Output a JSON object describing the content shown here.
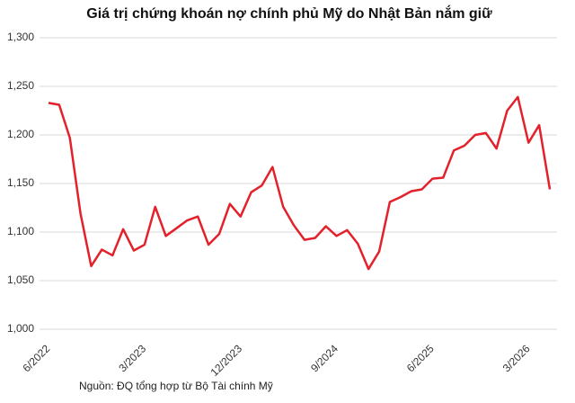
{
  "chart_data": {
    "type": "line",
    "title": "Giá trị chứng khoán nợ chính phủ Mỹ do Nhật Bản nắm giữ",
    "source": "Nguồn: ĐQ tổng hợp từ Bộ Tài chính Mỹ",
    "categories": [
      "6/2022",
      null,
      null,
      null,
      null,
      null,
      null,
      null,
      null,
      "3/2023",
      null,
      null,
      null,
      null,
      null,
      null,
      null,
      null,
      "12/2023",
      null,
      null,
      null,
      null,
      null,
      null,
      null,
      null,
      "9/2024",
      null,
      null,
      null,
      null,
      null,
      null,
      null,
      null,
      "6/2025",
      null,
      null,
      null,
      null,
      null,
      null,
      null,
      null,
      "3/2026",
      null,
      null
    ],
    "series": [
      {
        "name": "Giá trị",
        "color": "#e3212b",
        "values": [
          1233,
          1231,
          1197,
          1119,
          1065,
          1082,
          1076,
          1103,
          1081,
          1087,
          1126,
          1096,
          1104,
          1112,
          1116,
          1087,
          1098,
          1129,
          1116,
          1141,
          1148,
          1167,
          1126,
          1107,
          1092,
          1094,
          1106,
          1096,
          1102,
          1088,
          1062,
          1080,
          1131,
          1136,
          1142,
          1144,
          1155,
          1156,
          1184,
          1189,
          1200,
          1202,
          1186,
          1225,
          1239,
          1192,
          1210,
          1144
        ]
      }
    ],
    "ylim": [
      1000,
      1300
    ],
    "yticks": [
      {
        "value": 1000,
        "label": "1,000"
      },
      {
        "value": 1050,
        "label": "1,050"
      },
      {
        "value": 1100,
        "label": "1,100"
      },
      {
        "value": 1150,
        "label": "1,150"
      },
      {
        "value": 1200,
        "label": "1,200"
      },
      {
        "value": 1250,
        "label": "1,250"
      },
      {
        "value": 1300,
        "label": "1,300"
      }
    ],
    "grid": true
  }
}
